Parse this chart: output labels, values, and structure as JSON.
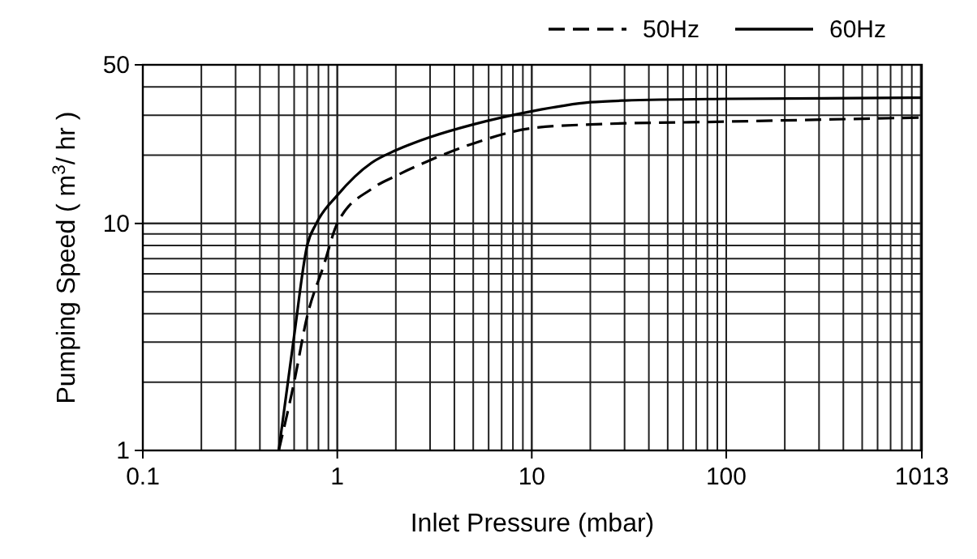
{
  "chart_data": {
    "type": "line",
    "xlabel": "Inlet Pressure (mbar)",
    "ylabel": "Pumping Speed ( m$^{3}$/ hr )",
    "log": "xy",
    "grid": true,
    "legend": "top right",
    "marker": "none",
    "xlim": [
      0.1,
      1013
    ],
    "xticks": [
      0.1,
      1,
      10,
      100,
      1013
    ],
    "ylim": [
      1,
      50
    ],
    "yticks": [
      1,
      10,
      50
    ],
    "series": [
      {
        "name": "50Hz",
        "color": "#000000",
        "line_style": "dashed",
        "x": [
          0.5,
          0.6,
          0.7,
          0.85,
          1,
          1.5,
          2,
          3,
          5,
          10,
          20,
          100,
          1013
        ],
        "values": [
          1,
          2,
          3.9,
          6.5,
          10,
          14.2,
          16.2,
          19,
          22.5,
          26.3,
          27.3,
          28.1,
          29.3
        ]
      },
      {
        "name": "60Hz",
        "color": "#000000",
        "line_style": "solid",
        "x": [
          0.5,
          0.6,
          0.7,
          0.78,
          1,
          1.5,
          2,
          3,
          5,
          10,
          20,
          30,
          100,
          1013
        ],
        "values": [
          1,
          3.2,
          8,
          10,
          13.3,
          18.5,
          21,
          24,
          27.3,
          31.2,
          34.2,
          34.8,
          35.4,
          35.8
        ]
      }
    ]
  }
}
